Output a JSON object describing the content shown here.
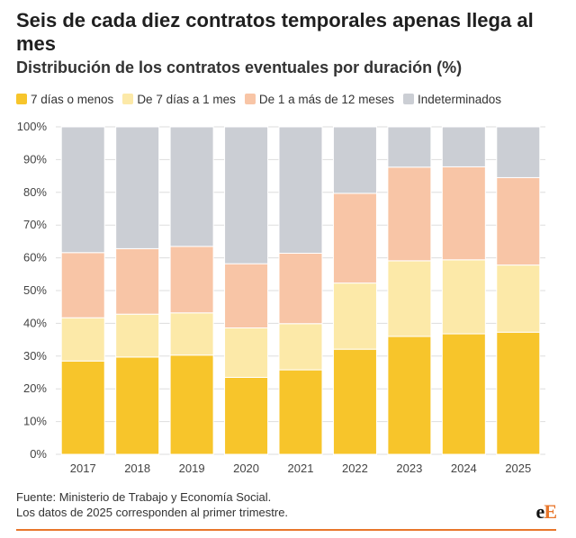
{
  "title": "Seis de cada diez contratos temporales apenas llega al mes",
  "subtitle": "Distribución de los contratos eventuales por duración (%)",
  "colors": {
    "s1": "#f7c52b",
    "s2": "#fce9a8",
    "s3": "#f8c5a6",
    "s4": "#cbced4",
    "grid": "#dddddd",
    "accent": "#e8762b"
  },
  "chart_data": {
    "type": "bar",
    "stacked": true,
    "title": "Seis de cada diez contratos temporales apenas llega al mes",
    "subtitle": "Distribución de los contratos eventuales por duración (%)",
    "xlabel": "",
    "ylabel": "",
    "ylim": [
      0,
      100
    ],
    "yticks": [
      "0%",
      "10%",
      "20%",
      "30%",
      "40%",
      "50%",
      "60%",
      "70%",
      "80%",
      "90%",
      "100%"
    ],
    "categories": [
      "2017",
      "2018",
      "2019",
      "2020",
      "2021",
      "2022",
      "2023",
      "2024",
      "2025"
    ],
    "legend_position": "top-left",
    "series": [
      {
        "name": "7 días o menos",
        "values": [
          28.5,
          29.7,
          30.3,
          23.5,
          25.8,
          32.1,
          36.0,
          36.8,
          37.3
        ]
      },
      {
        "name": "De 7 días a 1 mes",
        "values": [
          13.2,
          13.1,
          12.9,
          15.1,
          14.1,
          20.2,
          23.1,
          22.6,
          20.5
        ]
      },
      {
        "name": "De 1 a más de 12 meses",
        "values": [
          19.9,
          20.0,
          20.3,
          19.6,
          21.5,
          27.4,
          28.6,
          28.4,
          26.7
        ]
      },
      {
        "name": "Indeterminados",
        "values": [
          38.4,
          37.2,
          36.5,
          41.8,
          38.6,
          20.3,
          12.3,
          12.2,
          15.5
        ]
      }
    ]
  },
  "footer": {
    "source": "Fuente: Ministerio de Trabajo y Economía Social.",
    "note": "Los datos de 2025 corresponden al primer trimestre."
  },
  "logo": {
    "part1": "e",
    "part2": "E"
  }
}
